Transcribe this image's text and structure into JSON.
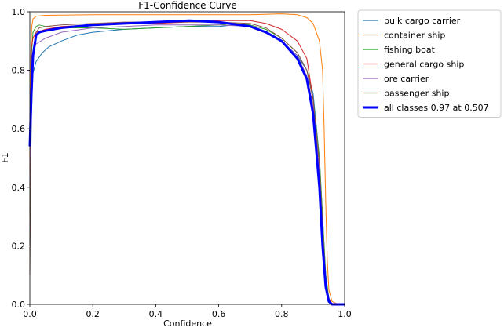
{
  "chart_data": {
    "type": "line",
    "title": "F1-Confidence Curve",
    "xlabel": "Confidence",
    "ylabel": "F1",
    "xlim": [
      0.0,
      1.0
    ],
    "ylim": [
      0.0,
      1.0
    ],
    "xticks": [
      "0.0",
      "0.2",
      "0.4",
      "0.6",
      "0.8",
      "1.0"
    ],
    "yticks": [
      "0.0",
      "0.2",
      "0.4",
      "0.6",
      "0.8",
      "1.0"
    ],
    "grid": false,
    "legend_position": "outside-top-right",
    "series": [
      {
        "name": "bulk cargo carrier",
        "color": "#1f77b4",
        "x": [
          0.0,
          0.005,
          0.01,
          0.02,
          0.04,
          0.06,
          0.1,
          0.15,
          0.2,
          0.3,
          0.4,
          0.5,
          0.6,
          0.65,
          0.7,
          0.75,
          0.8,
          0.85,
          0.88,
          0.9,
          0.92,
          0.93,
          0.94,
          0.95,
          0.96,
          0.98,
          1.0
        ],
        "y": [
          0.2,
          0.65,
          0.79,
          0.83,
          0.86,
          0.88,
          0.9,
          0.92,
          0.93,
          0.94,
          0.945,
          0.95,
          0.95,
          0.955,
          0.95,
          0.93,
          0.9,
          0.85,
          0.8,
          0.72,
          0.5,
          0.3,
          0.1,
          0.02,
          0.0,
          0.0,
          0.0
        ]
      },
      {
        "name": "container ship",
        "color": "#ff7f0e",
        "x": [
          0.0,
          0.003,
          0.006,
          0.01,
          0.02,
          0.05,
          0.2,
          0.4,
          0.6,
          0.7,
          0.8,
          0.85,
          0.88,
          0.9,
          0.92,
          0.93,
          0.935,
          0.94,
          0.945,
          0.95,
          0.96,
          0.98,
          1.0
        ],
        "y": [
          0.45,
          0.85,
          0.95,
          0.975,
          0.985,
          0.988,
          0.99,
          0.99,
          0.99,
          0.99,
          0.993,
          0.99,
          0.98,
          0.96,
          0.9,
          0.8,
          0.6,
          0.35,
          0.15,
          0.05,
          0.01,
          0.0,
          0.0
        ]
      },
      {
        "name": "fishing boat",
        "color": "#2ca02c",
        "x": [
          0.0,
          0.005,
          0.01,
          0.02,
          0.03,
          0.05,
          0.1,
          0.2,
          0.3,
          0.4,
          0.5,
          0.6,
          0.65,
          0.7,
          0.75,
          0.8,
          0.85,
          0.88,
          0.9,
          0.92,
          0.93,
          0.94,
          0.95,
          0.96,
          1.0
        ],
        "y": [
          0.3,
          0.85,
          0.93,
          0.95,
          0.955,
          0.95,
          0.945,
          0.945,
          0.94,
          0.945,
          0.95,
          0.955,
          0.96,
          0.955,
          0.94,
          0.91,
          0.86,
          0.8,
          0.7,
          0.5,
          0.3,
          0.1,
          0.02,
          0.0,
          0.0
        ]
      },
      {
        "name": "general cargo ship",
        "color": "#d62728",
        "x": [
          0.0,
          0.005,
          0.01,
          0.02,
          0.05,
          0.1,
          0.2,
          0.3,
          0.4,
          0.5,
          0.6,
          0.7,
          0.75,
          0.8,
          0.85,
          0.88,
          0.9,
          0.92,
          0.93,
          0.94,
          0.95,
          0.96,
          1.0
        ],
        "y": [
          0.5,
          0.88,
          0.91,
          0.93,
          0.94,
          0.95,
          0.955,
          0.96,
          0.96,
          0.965,
          0.97,
          0.97,
          0.96,
          0.94,
          0.9,
          0.84,
          0.7,
          0.45,
          0.25,
          0.08,
          0.02,
          0.0,
          0.0
        ]
      },
      {
        "name": "ore carrier",
        "color": "#9467bd",
        "x": [
          0.0,
          0.005,
          0.01,
          0.02,
          0.05,
          0.1,
          0.2,
          0.3,
          0.4,
          0.5,
          0.6,
          0.7,
          0.75,
          0.8,
          0.85,
          0.88,
          0.9,
          0.92,
          0.93,
          0.94,
          0.95,
          0.96,
          1.0
        ],
        "y": [
          0.4,
          0.8,
          0.86,
          0.89,
          0.91,
          0.93,
          0.945,
          0.95,
          0.955,
          0.955,
          0.955,
          0.95,
          0.93,
          0.9,
          0.85,
          0.78,
          0.68,
          0.45,
          0.25,
          0.08,
          0.02,
          0.0,
          0.0
        ]
      },
      {
        "name": "passenger ship",
        "color": "#8c564b",
        "x": [
          0.0,
          0.005,
          0.01,
          0.02,
          0.03,
          0.05,
          0.1,
          0.2,
          0.3,
          0.4,
          0.5,
          0.6,
          0.7,
          0.75,
          0.8,
          0.85,
          0.88,
          0.9,
          0.92,
          0.93,
          0.94,
          0.95,
          0.96,
          1.0
        ],
        "y": [
          0.1,
          0.7,
          0.85,
          0.93,
          0.945,
          0.95,
          0.955,
          0.96,
          0.965,
          0.965,
          0.965,
          0.965,
          0.96,
          0.945,
          0.91,
          0.86,
          0.8,
          0.7,
          0.48,
          0.28,
          0.08,
          0.02,
          0.0,
          0.0
        ]
      },
      {
        "name": "all classes 0.97 at 0.507",
        "color": "#0000ff",
        "bold": true,
        "x": [
          0.0,
          0.005,
          0.01,
          0.02,
          0.03,
          0.05,
          0.1,
          0.2,
          0.3,
          0.4,
          0.507,
          0.6,
          0.7,
          0.75,
          0.8,
          0.85,
          0.88,
          0.9,
          0.92,
          0.93,
          0.94,
          0.95,
          0.96,
          1.0
        ],
        "y": [
          0.54,
          0.72,
          0.85,
          0.92,
          0.93,
          0.935,
          0.945,
          0.955,
          0.96,
          0.965,
          0.97,
          0.965,
          0.95,
          0.93,
          0.9,
          0.84,
          0.77,
          0.65,
          0.4,
          0.2,
          0.06,
          0.01,
          0.0,
          0.0
        ]
      }
    ]
  }
}
